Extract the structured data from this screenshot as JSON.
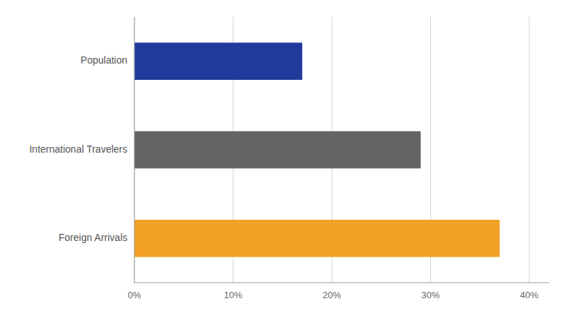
{
  "chart_data": {
    "type": "bar",
    "orientation": "horizontal",
    "categories": [
      "Foreign Arrivals",
      "International Travelers",
      "Population"
    ],
    "values": [
      0.37,
      0.29,
      0.17
    ],
    "colors": [
      "#F2A024",
      "#636466",
      "#1F3A9A"
    ],
    "xlim": [
      0,
      0.42
    ],
    "xticks": [
      {
        "value": 0.0,
        "label": "0%"
      },
      {
        "value": 0.1,
        "label": "10%"
      },
      {
        "value": 0.2,
        "label": "20%"
      },
      {
        "value": 0.3,
        "label": "30%"
      },
      {
        "value": 0.4,
        "label": "40%"
      }
    ],
    "grid": true
  }
}
